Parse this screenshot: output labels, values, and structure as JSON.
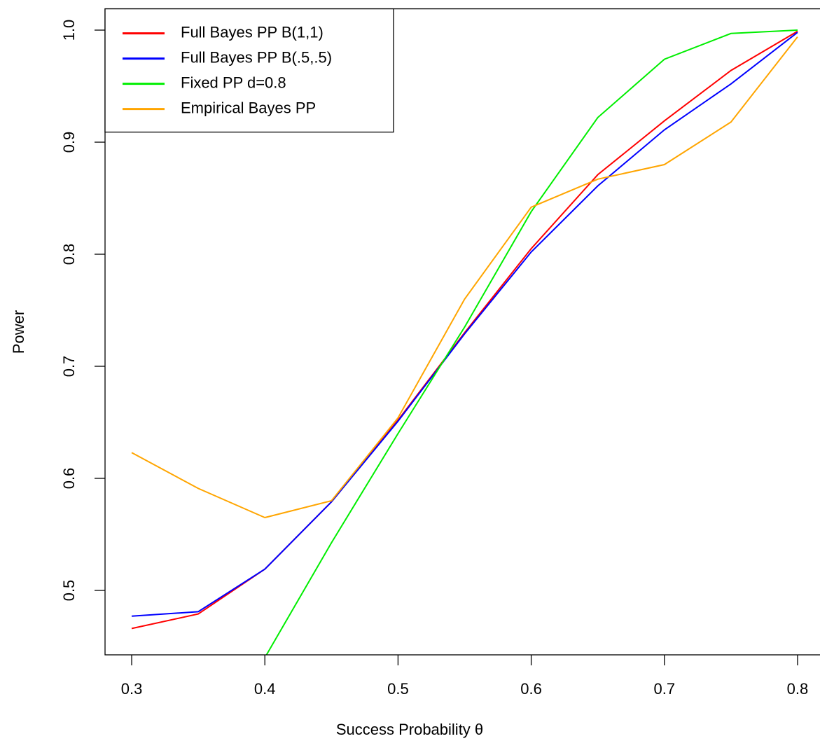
{
  "chart_data": {
    "type": "line",
    "xlabel": "Success Probability θ",
    "ylabel": "Power",
    "x": [
      0.3,
      0.35,
      0.4,
      0.45,
      0.5,
      0.55,
      0.6,
      0.65,
      0.7,
      0.75,
      0.8
    ],
    "series": [
      {
        "name": "Full Bayes PP B(1,1)",
        "color": "#ff0000",
        "values": [
          0.466,
          0.479,
          0.519,
          0.579,
          0.652,
          0.73,
          0.805,
          0.871,
          0.919,
          0.964,
          0.999
        ]
      },
      {
        "name": "Full Bayes PP B(.5,.5)",
        "color": "#0000ff",
        "values": [
          0.477,
          0.481,
          0.519,
          0.579,
          0.651,
          0.729,
          0.802,
          0.861,
          0.911,
          0.952,
          0.998
        ]
      },
      {
        "name": "Fixed PP d=0.8",
        "color": "#00ee00",
        "values": [
          null,
          null,
          0.44,
          0.5425,
          0.64,
          0.735,
          0.838,
          0.922,
          0.974,
          0.997,
          1.0
        ]
      },
      {
        "name": "Empirical Bayes PP",
        "color": "#ffa500",
        "values": [
          0.623,
          0.591,
          0.565,
          0.58,
          0.654,
          0.76,
          0.842,
          0.867,
          0.88,
          0.918,
          0.994
        ]
      }
    ],
    "xlim": [
      0.28,
      0.82
    ],
    "ylim": [
      0.4425,
      1.019
    ],
    "xticks": [
      0.3,
      0.4,
      0.5,
      0.6,
      0.7,
      0.8
    ],
    "yticks": [
      0.5,
      0.6,
      0.7,
      0.8,
      0.9,
      {
        "value": 1,
        "label": "1.0"
      }
    ],
    "legend": "top-left"
  }
}
